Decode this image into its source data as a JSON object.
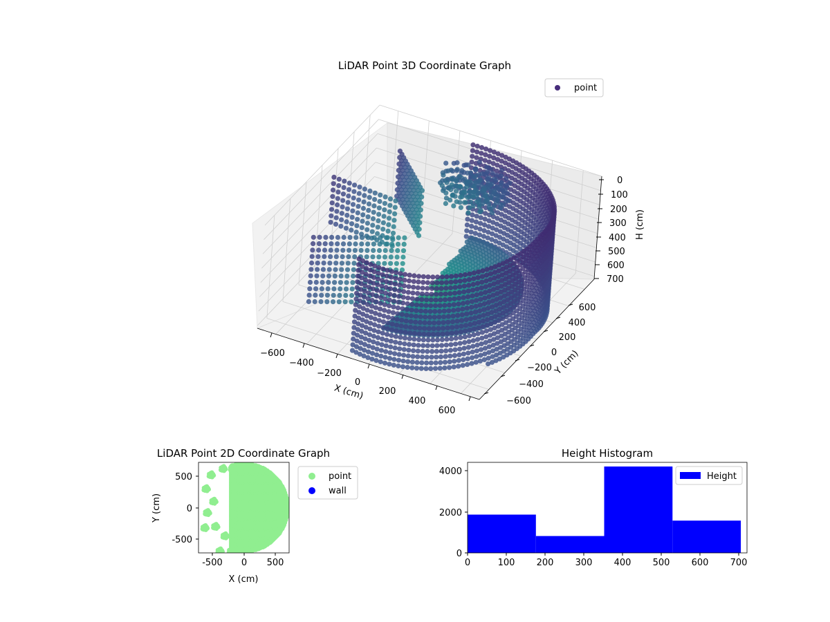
{
  "chart_data": [
    {
      "type": "scatter",
      "projection": "3d",
      "title": "LiDAR Point 3D Coordinate Graph",
      "xlabel": "X (cm)",
      "ylabel": "Y (cm)",
      "zlabel": "H (cm)",
      "xlim": [
        -720,
        720
      ],
      "ylim": [
        -720,
        720
      ],
      "zlim": [
        720,
        0
      ],
      "xticks": [
        "−600",
        "−400",
        "−200",
        "0",
        "200",
        "400",
        "600"
      ],
      "yticks": [
        "−600",
        "−400",
        "−200",
        "0",
        "200",
        "400",
        "600"
      ],
      "zticks": [
        "0",
        "100",
        "200",
        "300",
        "400",
        "500",
        "600",
        "700"
      ],
      "grid": true,
      "colormap": "viridis",
      "legend": {
        "placement": "top-right",
        "entries": [
          {
            "label": "point",
            "color": "#472d7b"
          }
        ]
      },
      "series": [
        {
          "name": "point",
          "rings": [
            {
              "start_deg": -100,
              "end_deg": 100,
              "step_deg": 2.2,
              "radius": 700,
              "h_top": 0,
              "h_bottom": 720,
              "h_step": 40
            }
          ],
          "wall_segments": [
            {
              "angle_deg": 175,
              "r_from": 250,
              "r_to": 700,
              "h_top": 100,
              "h_bottom": 420
            },
            {
              "angle_deg": 135,
              "r_from": 200,
              "r_to": 650,
              "h_top": 60,
              "h_bottom": 400
            },
            {
              "angle_deg": -150,
              "r_from": 150,
              "r_to": 680,
              "h_top": 260,
              "h_bottom": 720
            }
          ],
          "floor_disk": {
            "start_deg": -90,
            "end_deg": 90,
            "r_max": 560,
            "height": 640
          },
          "dense_cluster": {
            "x": 80,
            "y": 380,
            "h_top": 20,
            "h_bottom": 180
          }
        }
      ]
    },
    {
      "type": "scatter",
      "title": "LiDAR Point 2D Coordinate Graph",
      "xlabel": "X (cm)",
      "ylabel": "Y (cm)",
      "xlim": [
        -720,
        720
      ],
      "ylim": [
        -720,
        720
      ],
      "xticks": [
        -500,
        0,
        500
      ],
      "yticks": [
        -500,
        0,
        500
      ],
      "grid": false,
      "legend": {
        "placement": "right-outside",
        "entries": [
          {
            "label": "point",
            "color": "#90ee90"
          },
          {
            "label": "wall",
            "color": "#0000ff"
          }
        ]
      },
      "series": [
        {
          "name": "point",
          "color": "#90ee90",
          "half_disk": {
            "x_min": -200,
            "radius": 700
          },
          "blobs": [
            {
              "x": -520,
              "y": 520
            },
            {
              "x": -600,
              "y": 300
            },
            {
              "x": -480,
              "y": 100
            },
            {
              "x": -580,
              "y": -80
            },
            {
              "x": -450,
              "y": -300
            },
            {
              "x": -300,
              "y": -450
            },
            {
              "x": -180,
              "y": 620
            },
            {
              "x": -330,
              "y": 620
            },
            {
              "x": -380,
              "y": -690
            },
            {
              "x": -200,
              "y": -690
            },
            {
              "x": -620,
              "y": -320
            }
          ]
        },
        {
          "name": "wall",
          "color": "#0000ff",
          "points": []
        }
      ]
    },
    {
      "type": "histogram",
      "title": "Height Histogram",
      "xlabel": "",
      "ylabel": "",
      "bins": [
        0,
        176,
        352,
        528,
        704
      ],
      "values": [
        1860,
        820,
        4200,
        1570
      ],
      "xlim": [
        0,
        720
      ],
      "ylim": [
        0,
        4400
      ],
      "xticks": [
        0,
        100,
        200,
        300,
        400,
        500,
        600,
        700
      ],
      "yticks": [
        0,
        2000,
        4000
      ],
      "color": "#0000ff",
      "grid": false,
      "legend": {
        "placement": "top-right",
        "entries": [
          {
            "label": "Height",
            "color": "#0000ff"
          }
        ]
      }
    }
  ]
}
